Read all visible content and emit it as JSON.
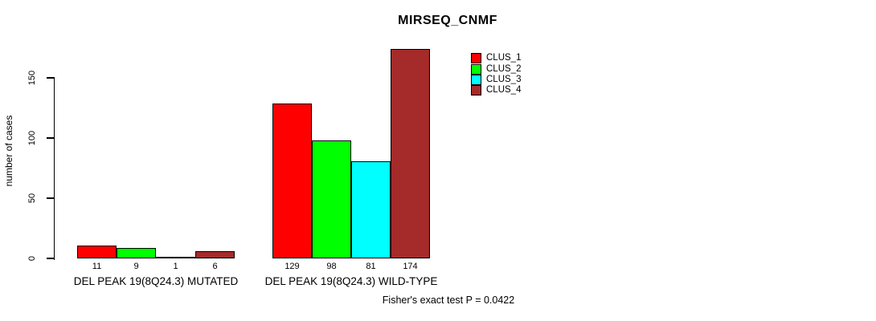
{
  "chart_data": {
    "type": "bar",
    "title": "MIRSEQ_CNMF",
    "ylabel": "number of cases",
    "xlabel": "",
    "ylim": [
      0,
      175
    ],
    "yticks": [
      0,
      50,
      100,
      150
    ],
    "grid": false,
    "legend_position": "top-right",
    "categories": [
      "DEL PEAK 19(8Q24.3) MUTATED",
      "DEL PEAK 19(8Q24.3) WILD-TYPE"
    ],
    "series": [
      {
        "name": "CLUS_1",
        "color": "#FF0000",
        "values": [
          11,
          129
        ]
      },
      {
        "name": "CLUS_2",
        "color": "#00FF00",
        "values": [
          9,
          98
        ]
      },
      {
        "name": "CLUS_3",
        "color": "#00FFFF",
        "values": [
          1,
          81
        ]
      },
      {
        "name": "CLUS_4",
        "color": "#A52A2A",
        "values": [
          6,
          174
        ]
      }
    ],
    "bar_value_labels": [
      [
        11,
        9,
        1,
        6
      ],
      [
        129,
        98,
        81,
        174
      ]
    ]
  },
  "footer": {
    "caption": "Fisher's exact test P = 0.0422"
  }
}
